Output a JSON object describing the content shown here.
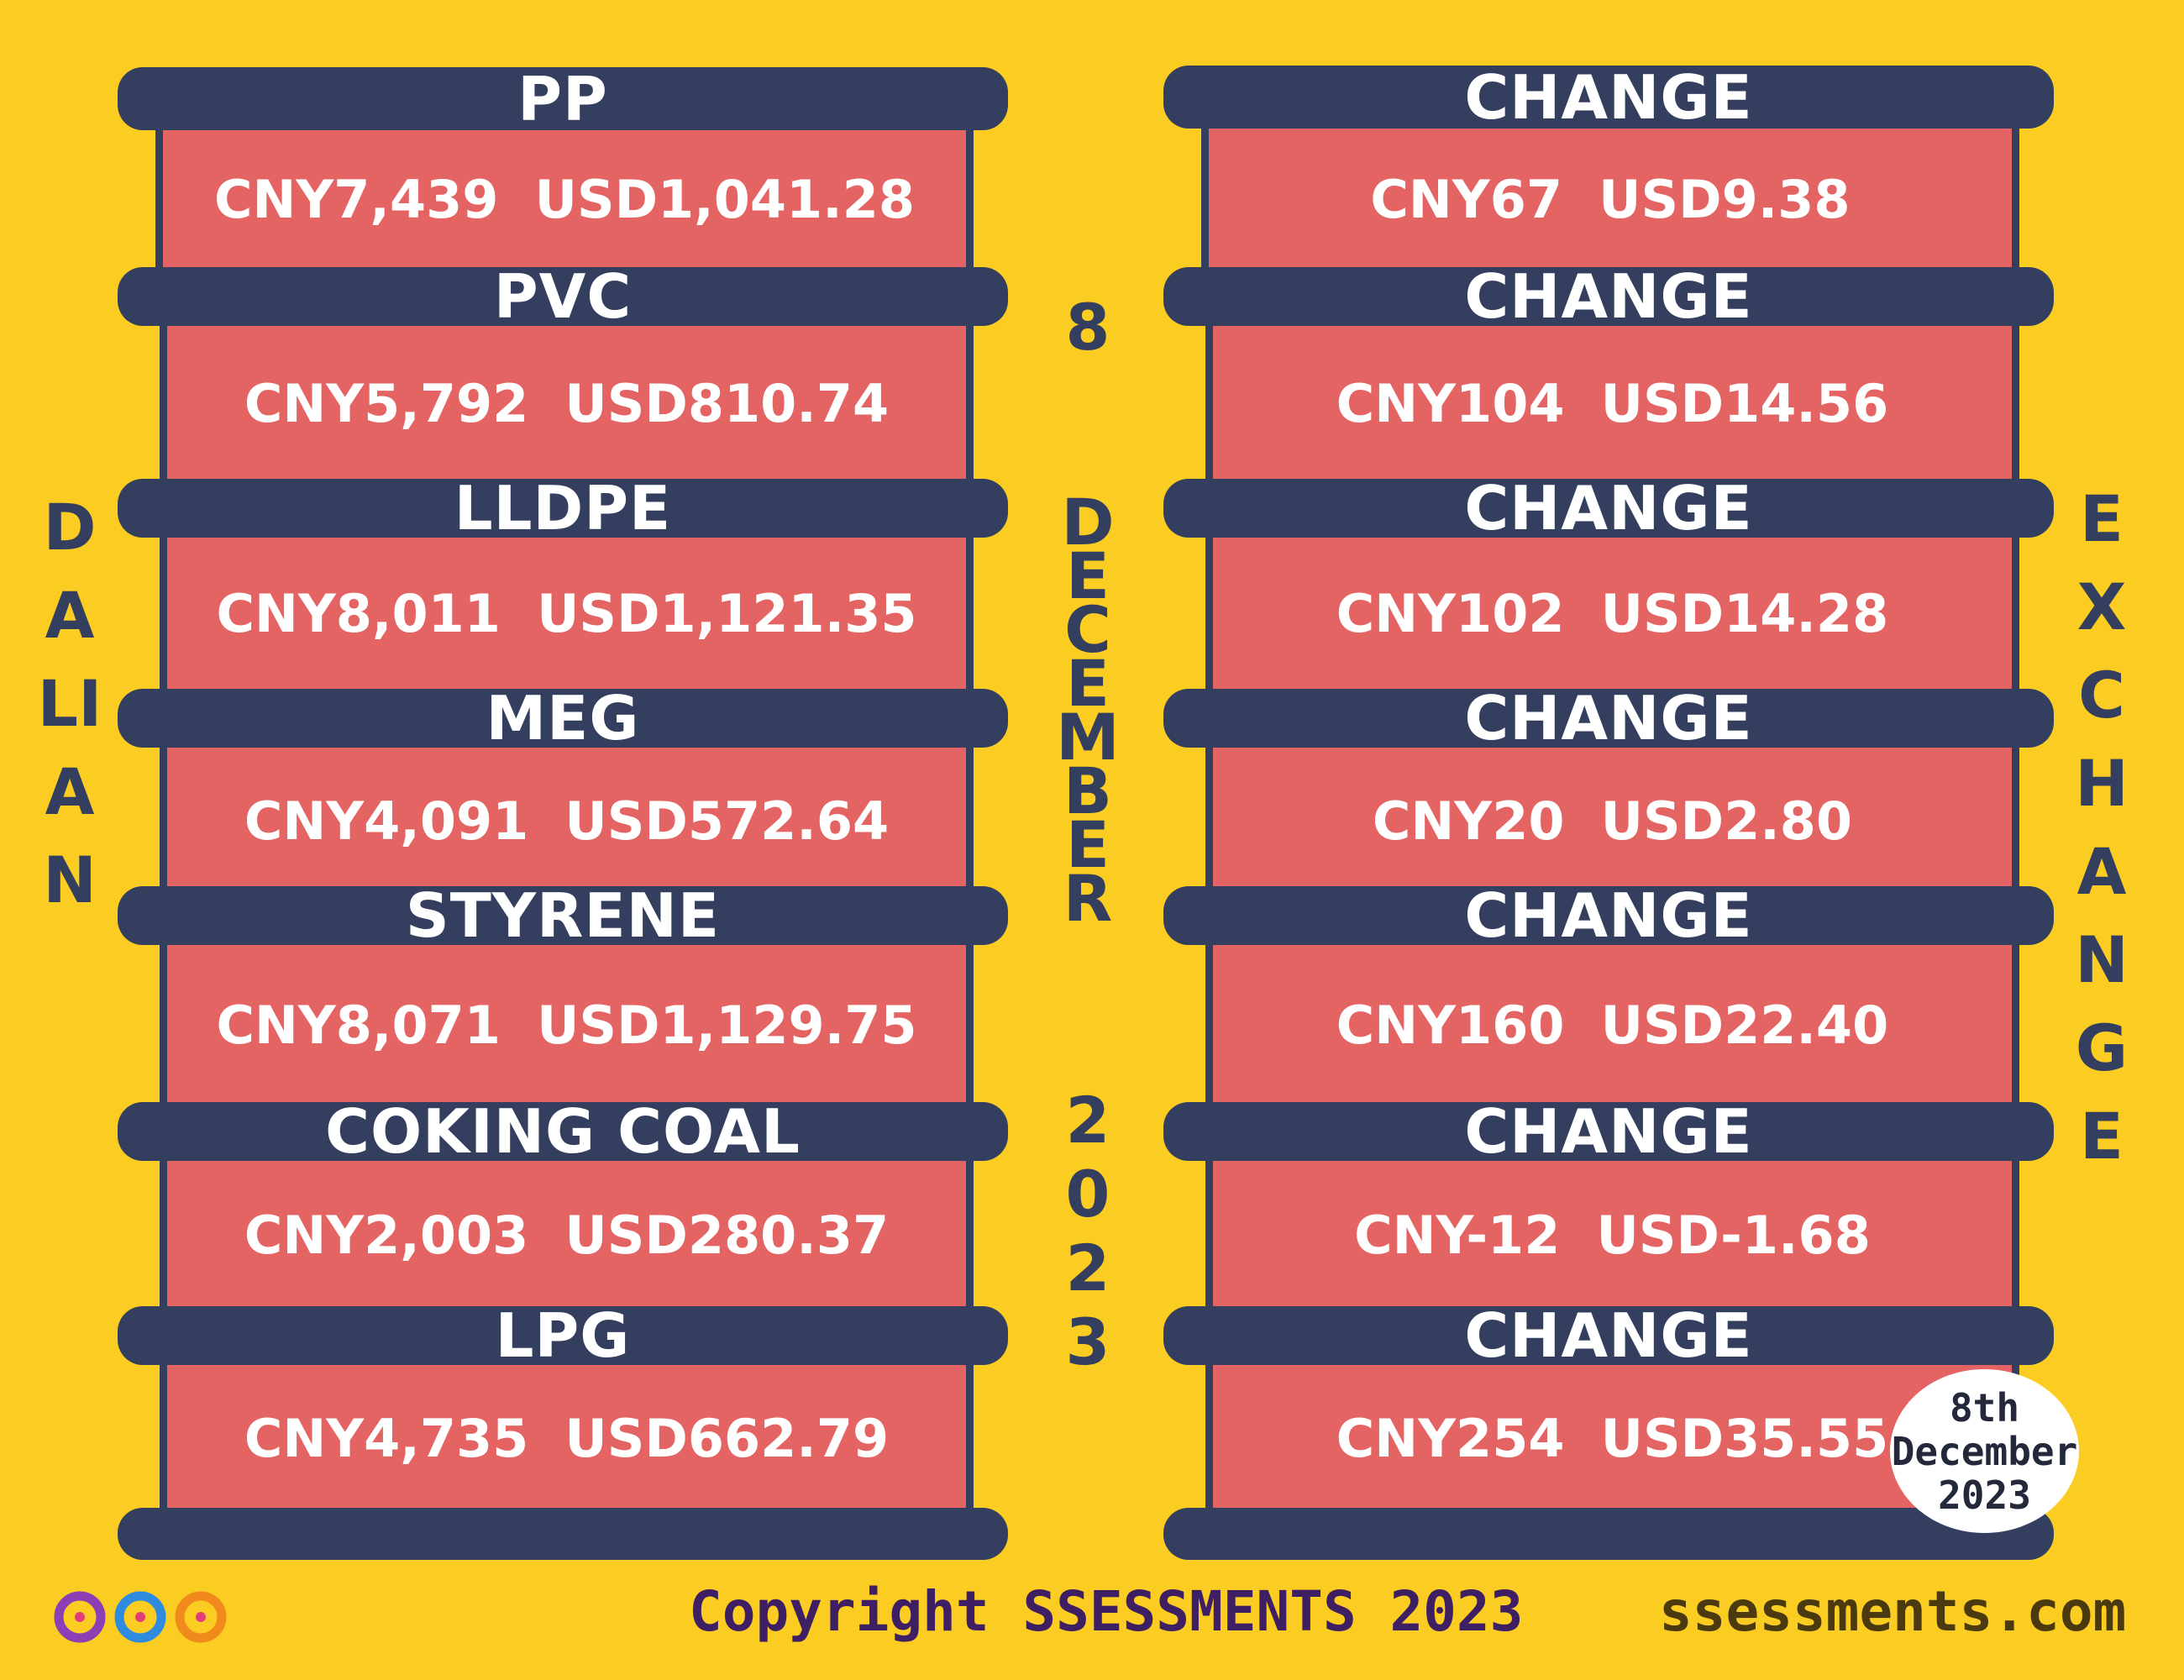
{
  "left_vertical": "DALIAN",
  "right_vertical": "EXCHANGE",
  "middle_vertical": [
    "8",
    "DECEMBER",
    "2023"
  ],
  "rows": [
    {
      "product": "PP",
      "price": "CNY7,439  USD1,041.28",
      "change_label": "CHANGE",
      "change": "CNY67  USD9.38"
    },
    {
      "product": "PVC",
      "price": "CNY5,792  USD810.74",
      "change_label": "CHANGE",
      "change": "CNY104  USD14.56"
    },
    {
      "product": "LLDPE",
      "price": "CNY8,011  USD1,121.35",
      "change_label": "CHANGE",
      "change": "CNY102  USD14.28"
    },
    {
      "product": "MEG",
      "price": "CNY4,091  USD572.64",
      "change_label": "CHANGE",
      "change": "CNY20  USD2.80"
    },
    {
      "product": "STYRENE",
      "price": "CNY8,071  USD1,129.75",
      "change_label": "CHANGE",
      "change": "CNY160  USD22.40"
    },
    {
      "product": "COKING COAL",
      "price": "CNY2,003  USD280.37",
      "change_label": "CHANGE",
      "change": "CNY-12  USD-1.68"
    },
    {
      "product": "LPG",
      "price": "CNY4,735  USD662.79",
      "change_label": "CHANGE",
      "change": "CNY254  USD35.55"
    }
  ],
  "badge": [
    "8th",
    "December",
    "2023"
  ],
  "footer": {
    "copyright": "Copyright SSESSMENTS 2023",
    "site": "ssessments.com"
  },
  "colors": {
    "background": "#FBCD22",
    "band": "#343F60",
    "cell": "#E36462",
    "text": "#FFFFFF"
  }
}
